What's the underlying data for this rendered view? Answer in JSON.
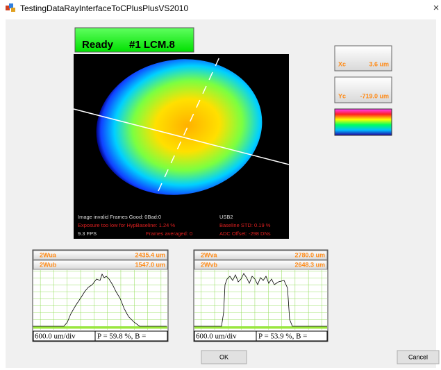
{
  "window": {
    "title": "TestingDataRayInterfaceToCPlusPlusVS2010"
  },
  "status": {
    "state": "Ready",
    "device": "#1 LCM.8"
  },
  "centroid": {
    "xc_label": "Xc",
    "xc_value": "3.6 um",
    "yc_label": "Yc",
    "yc_value": "-719.0 um"
  },
  "image_overlay": {
    "line1_left": "Image invalid  Frames Good: 0Bad:0",
    "line1_right": "USB2",
    "line2_left": "Exposure too low for HypBaseline: 1.24 %",
    "line2_right": "Baseline STD:  0.19 %",
    "line3_fps": "9.3 FPS",
    "line3_mid": "Frames averaged: 0",
    "line3_right": "ADC Offset: -298 DNs"
  },
  "profiles": [
    {
      "row1_label": "2Wua",
      "row1_value": "2435.4 um",
      "row2_label": "2Wub",
      "row2_value": "1547.0 um",
      "scale": "600.0 um/div",
      "stats": "P = 59.8 %,  B ="
    },
    {
      "row1_label": "2Wva",
      "row1_value": "2780.0 um",
      "row2_label": "2Wvb",
      "row2_value": "2648.3 um",
      "scale": "600.0 um/div",
      "stats": "P = 53.9 %,  B ="
    }
  ],
  "buttons": {
    "ok": "OK",
    "cancel": "Cancel"
  }
}
